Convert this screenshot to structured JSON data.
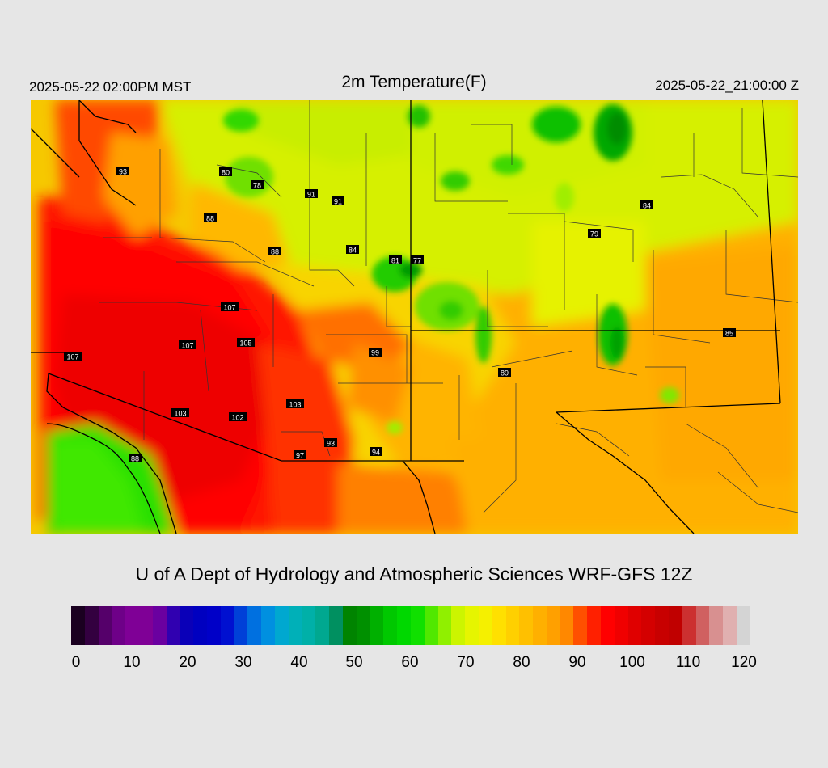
{
  "header": {
    "left": "2025-05-22 02:00PM MST",
    "title": "2m Temperature(F)",
    "right": "2025-05-22_21:00:00 Z"
  },
  "credit": "U of A Dept of Hydrology and Atmospheric Sciences WRF-GFS 12Z",
  "colorbar": {
    "ticks": [
      "0",
      "10",
      "20",
      "30",
      "40",
      "50",
      "60",
      "70",
      "80",
      "90",
      "100",
      "110",
      "120"
    ],
    "colors": [
      "#1a0020",
      "#330040",
      "#55006a",
      "#6e0088",
      "#7f0096",
      "#7f0096",
      "#6a00a0",
      "#3000b0",
      "#0a00b8",
      "#0000c0",
      "#0000c8",
      "#0010d0",
      "#0040d8",
      "#0070e0",
      "#0090e0",
      "#00a8d0",
      "#00b0b8",
      "#00b0a8",
      "#00a890",
      "#009060",
      "#008400",
      "#009000",
      "#00b000",
      "#00c800",
      "#00d800",
      "#10e000",
      "#50e800",
      "#90f000",
      "#ccf500",
      "#e6f500",
      "#f5f000",
      "#ffe000",
      "#ffd000",
      "#ffc000",
      "#ffb000",
      "#ffa000",
      "#ff8800",
      "#ff5000",
      "#ff2000",
      "#ff0000",
      "#f00000",
      "#e00000",
      "#d40000",
      "#c80000",
      "#c00000",
      "#cc3030",
      "#d06060",
      "#d89090",
      "#e0b0b0",
      "#d4d4d4"
    ]
  },
  "map": {
    "stations": [
      {
        "label": "93"
      },
      {
        "label": "80"
      },
      {
        "label": "78"
      },
      {
        "label": "91"
      },
      {
        "label": "91"
      },
      {
        "label": "84"
      },
      {
        "label": "88"
      },
      {
        "label": "88"
      },
      {
        "label": "84"
      },
      {
        "label": "81"
      },
      {
        "label": "77"
      },
      {
        "label": "79"
      },
      {
        "label": "107"
      },
      {
        "label": "107"
      },
      {
        "label": "105"
      },
      {
        "label": "107"
      },
      {
        "label": "99"
      },
      {
        "label": "85"
      },
      {
        "label": "89"
      },
      {
        "label": "103"
      },
      {
        "label": "103"
      },
      {
        "label": "102"
      },
      {
        "label": "93"
      },
      {
        "label": "97"
      },
      {
        "label": "94"
      },
      {
        "label": "88"
      }
    ]
  }
}
